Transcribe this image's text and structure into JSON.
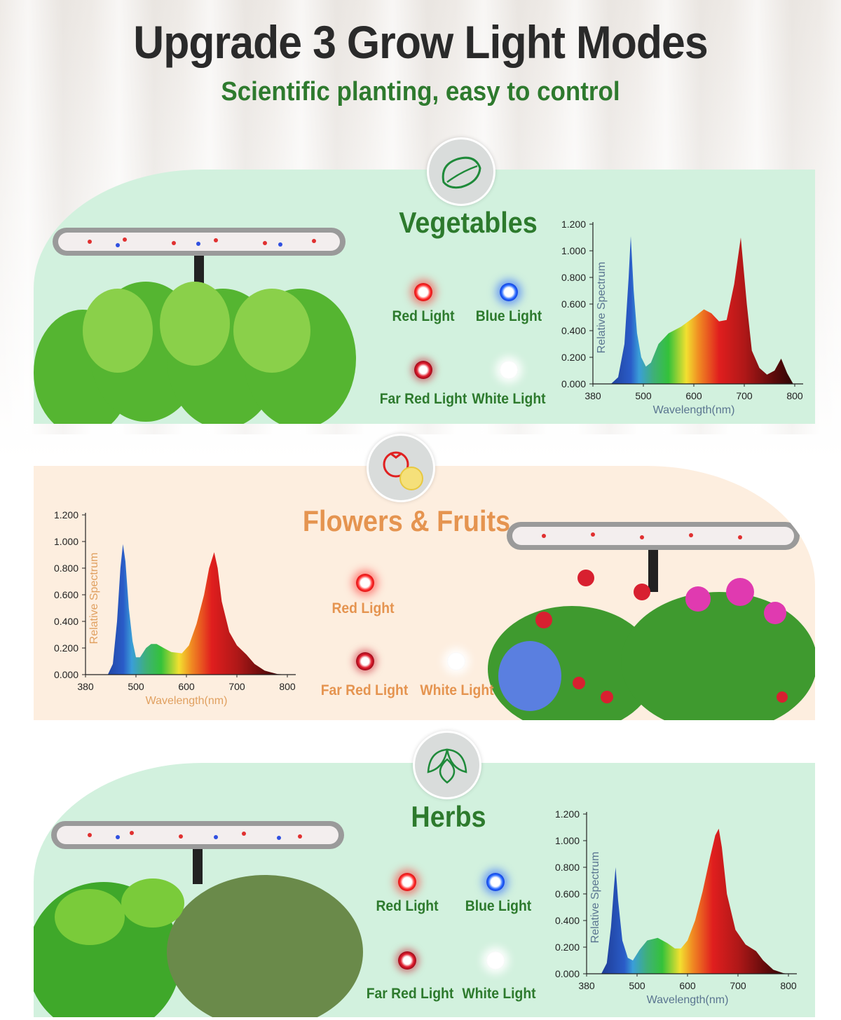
{
  "header": {
    "title": "Upgrade 3 Grow Light Modes",
    "subtitle": "Scientific planting, easy to control"
  },
  "sections": [
    {
      "title": "Vegetables",
      "icon": "lettuce-icon",
      "accent": "#2d7a2d",
      "lights": [
        {
          "label": "Red Light",
          "type": "red"
        },
        {
          "label": "Blue Light",
          "type": "blue"
        },
        {
          "label": "Far Red Light",
          "type": "farred"
        },
        {
          "label": "White Light",
          "type": "white"
        }
      ]
    },
    {
      "title": "Flowers & Fruits",
      "icon": "tomato-flower-icon",
      "accent": "#e59450",
      "lights": [
        {
          "label": "Red Light",
          "type": "red"
        },
        {
          "label": "Far Red Light",
          "type": "farred"
        },
        {
          "label": "White Light",
          "type": "white"
        }
      ]
    },
    {
      "title": "Herbs",
      "icon": "basil-leaves-icon",
      "accent": "#2d7a2d",
      "lights": [
        {
          "label": "Red Light",
          "type": "red"
        },
        {
          "label": "Blue Light",
          "type": "blue"
        },
        {
          "label": "Far Red Light",
          "type": "farred"
        },
        {
          "label": "White Light",
          "type": "white"
        }
      ]
    }
  ],
  "chart_data": [
    {
      "type": "area",
      "xlabel": "Wavelength(nm)",
      "ylabel": "Relative Spectrum",
      "label_color": "#5a7590",
      "x_ticks": [
        380,
        500,
        600,
        700,
        800
      ],
      "y_ticks": [
        "0.000",
        "0.200",
        "0.400",
        "0.600",
        "0.800",
        "1.000",
        "1.200"
      ],
      "ylim": [
        0,
        1.2
      ],
      "grid": false,
      "x": [
        423,
        440,
        455,
        465,
        470,
        477,
        485,
        495,
        505,
        515,
        530,
        550,
        575,
        600,
        620,
        635,
        650,
        665,
        680,
        693,
        705,
        715,
        730,
        745,
        760,
        773,
        785,
        797
      ],
      "y": [
        0,
        0.05,
        0.3,
        0.8,
        1.11,
        0.7,
        0.38,
        0.2,
        0.13,
        0.16,
        0.3,
        0.38,
        0.43,
        0.5,
        0.56,
        0.53,
        0.47,
        0.48,
        0.75,
        1.1,
        0.6,
        0.25,
        0.12,
        0.07,
        0.1,
        0.19,
        0.08,
        0
      ]
    },
    {
      "type": "area",
      "xlabel": "Wavelength(nm)",
      "ylabel": "Relative Spectrum",
      "label_color": "#e0a060",
      "x_ticks": [
        380,
        500,
        600,
        700,
        800
      ],
      "y_ticks": [
        "0.000",
        "0.200",
        "0.400",
        "0.600",
        "0.800",
        "1.000",
        "1.200"
      ],
      "ylim": [
        0,
        1.2
      ],
      "grid": false,
      "x": [
        433,
        445,
        455,
        463,
        469,
        475,
        483,
        492,
        500,
        508,
        520,
        530,
        541,
        555,
        570,
        591,
        605,
        620,
        635,
        645,
        655,
        662,
        670,
        685,
        700,
        719,
        735,
        755,
        780,
        800
      ],
      "y": [
        0,
        0.08,
        0.4,
        0.8,
        0.98,
        0.85,
        0.5,
        0.25,
        0.13,
        0.13,
        0.2,
        0.23,
        0.23,
        0.2,
        0.17,
        0.16,
        0.22,
        0.38,
        0.6,
        0.8,
        0.92,
        0.8,
        0.55,
        0.32,
        0.22,
        0.15,
        0.08,
        0.03,
        0.005,
        0
      ]
    },
    {
      "type": "area",
      "xlabel": "Wavelength(nm)",
      "ylabel": "Relative Spectrum",
      "label_color": "#5a7590",
      "x_ticks": [
        380,
        500,
        600,
        700,
        800
      ],
      "y_ticks": [
        "0.000",
        "0.200",
        "0.400",
        "0.600",
        "0.800",
        "1.000",
        "1.200"
      ],
      "ylim": [
        0,
        1.2
      ],
      "grid": false,
      "x": [
        415,
        428,
        438,
        445,
        449,
        455,
        465,
        478,
        490,
        505,
        520,
        541,
        560,
        575,
        587,
        600,
        615,
        630,
        645,
        655,
        662,
        668,
        678,
        695,
        715,
        736,
        750,
        770,
        790,
        800
      ],
      "y": [
        0,
        0.08,
        0.35,
        0.65,
        0.8,
        0.55,
        0.25,
        0.12,
        0.1,
        0.18,
        0.25,
        0.27,
        0.23,
        0.19,
        0.19,
        0.25,
        0.4,
        0.62,
        0.88,
        1.04,
        1.09,
        0.95,
        0.6,
        0.33,
        0.22,
        0.17,
        0.1,
        0.03,
        0.005,
        0
      ]
    }
  ]
}
